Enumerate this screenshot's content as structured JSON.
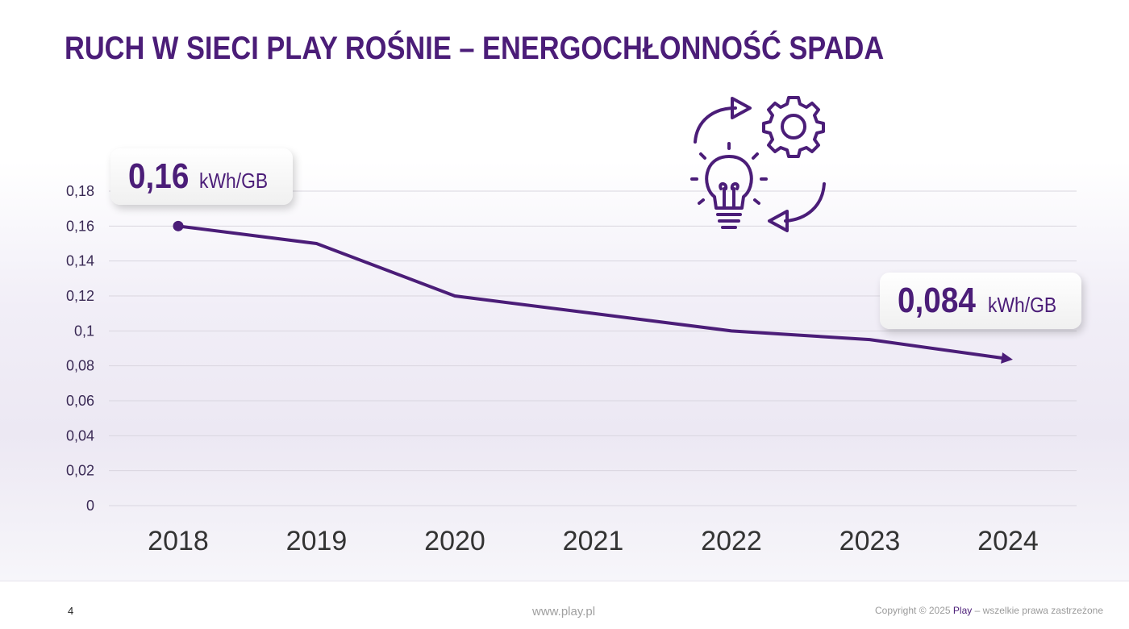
{
  "slide": {
    "title": "RUCH W SIECI PLAY ROŚNIE – ENERGOCHŁONNOŚĆ SPADA",
    "accent_color": "#4b1d78"
  },
  "callouts": {
    "start": {
      "value": "0,16",
      "unit": "kWh/GB"
    },
    "end": {
      "value": "0,084",
      "unit": "kWh/GB"
    }
  },
  "illustration": {
    "icons": [
      "arrow-cycle-icon",
      "gear-icon",
      "lightbulb-icon"
    ]
  },
  "footer": {
    "page_number": "4",
    "website": "www.play.pl",
    "copyright_prefix": "Copyright © 2025 ",
    "copyright_brand": "Play",
    "copyright_suffix": " – wszelkie prawa zastrzeżone"
  },
  "chart_data": {
    "type": "line",
    "title": "",
    "xlabel": "",
    "ylabel": "",
    "categories": [
      "2018",
      "2019",
      "2020",
      "2021",
      "2022",
      "2023",
      "2024"
    ],
    "series": [
      {
        "values": [
          0.16,
          0.15,
          0.12,
          0.11,
          0.1,
          0.095,
          0.084
        ],
        "color": "#4b1d78"
      }
    ],
    "ylim": [
      0,
      0.18
    ],
    "yticks": [
      0,
      0.02,
      0.04,
      0.06,
      0.08,
      0.1,
      0.12,
      0.14,
      0.16,
      0.18
    ],
    "ytick_labels": [
      "0",
      "0,02",
      "0,04",
      "0,06",
      "0,08",
      "0,1",
      "0,12",
      "0,14",
      "0,16",
      "0,18"
    ],
    "grid": true,
    "start_marker": "dot",
    "end_marker": "arrow"
  }
}
